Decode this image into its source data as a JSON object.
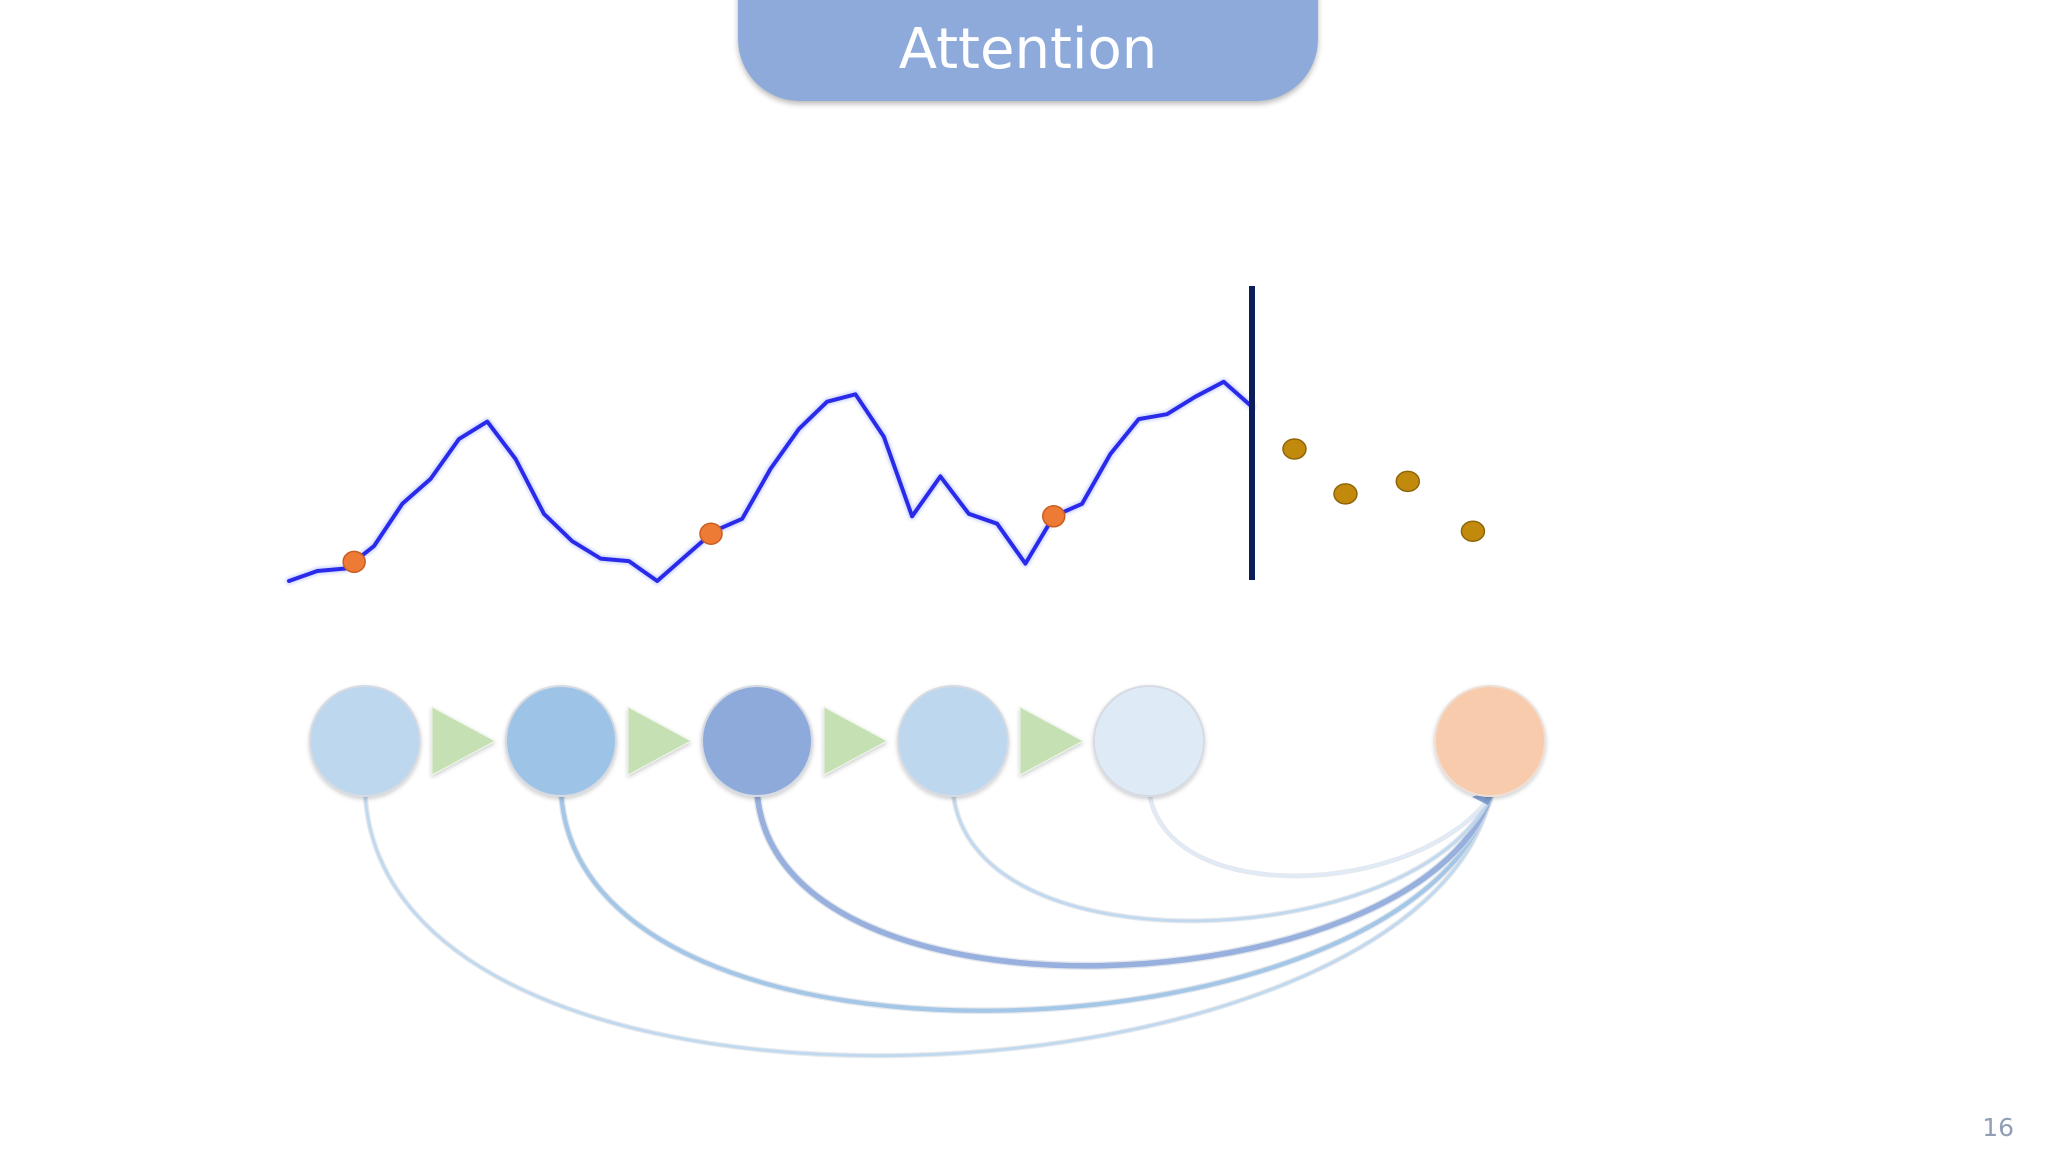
{
  "slide": {
    "title": "Attention",
    "page_number": "16"
  },
  "colors": {
    "title_fill": "#8eaadb",
    "signal_line": "#2a2bea",
    "signal_point": "#ee7b35",
    "forecast_point": "#c28a0d",
    "boundary_line": "#0c1d5b",
    "arrow_fill": "#c5e0b3",
    "target_node": "#f8cbad"
  },
  "sequence_nodes": [
    {
      "fill": "#bdd7ee",
      "attention": 0.15
    },
    {
      "fill": "#9dc3e6",
      "attention": 0.35
    },
    {
      "fill": "#8eaadb",
      "attention": 0.55
    },
    {
      "fill": "#bdd7ee",
      "attention": 0.15
    },
    {
      "fill": "#deebf7",
      "attention": 0.1
    }
  ],
  "signal_series": [
    0.0,
    0.04,
    0.05,
    0.14,
    0.31,
    0.41,
    0.57,
    0.64,
    0.49,
    0.27,
    0.16,
    0.09,
    0.08,
    0.0,
    0.1,
    0.2,
    0.25,
    0.45,
    0.61,
    0.72,
    0.75,
    0.58,
    0.26,
    0.42,
    0.27,
    0.23,
    0.07,
    0.26,
    0.31,
    0.51,
    0.65,
    0.67,
    0.74,
    0.8,
    0.7
  ],
  "highlighted_indices": [
    2.3,
    14.9,
    27.0
  ],
  "forecast_points": [
    {
      "x": 35.5,
      "y": 0.53
    },
    {
      "x": 37.3,
      "y": 0.35
    },
    {
      "x": 39.5,
      "y": 0.4
    },
    {
      "x": 41.8,
      "y": 0.2
    }
  ]
}
